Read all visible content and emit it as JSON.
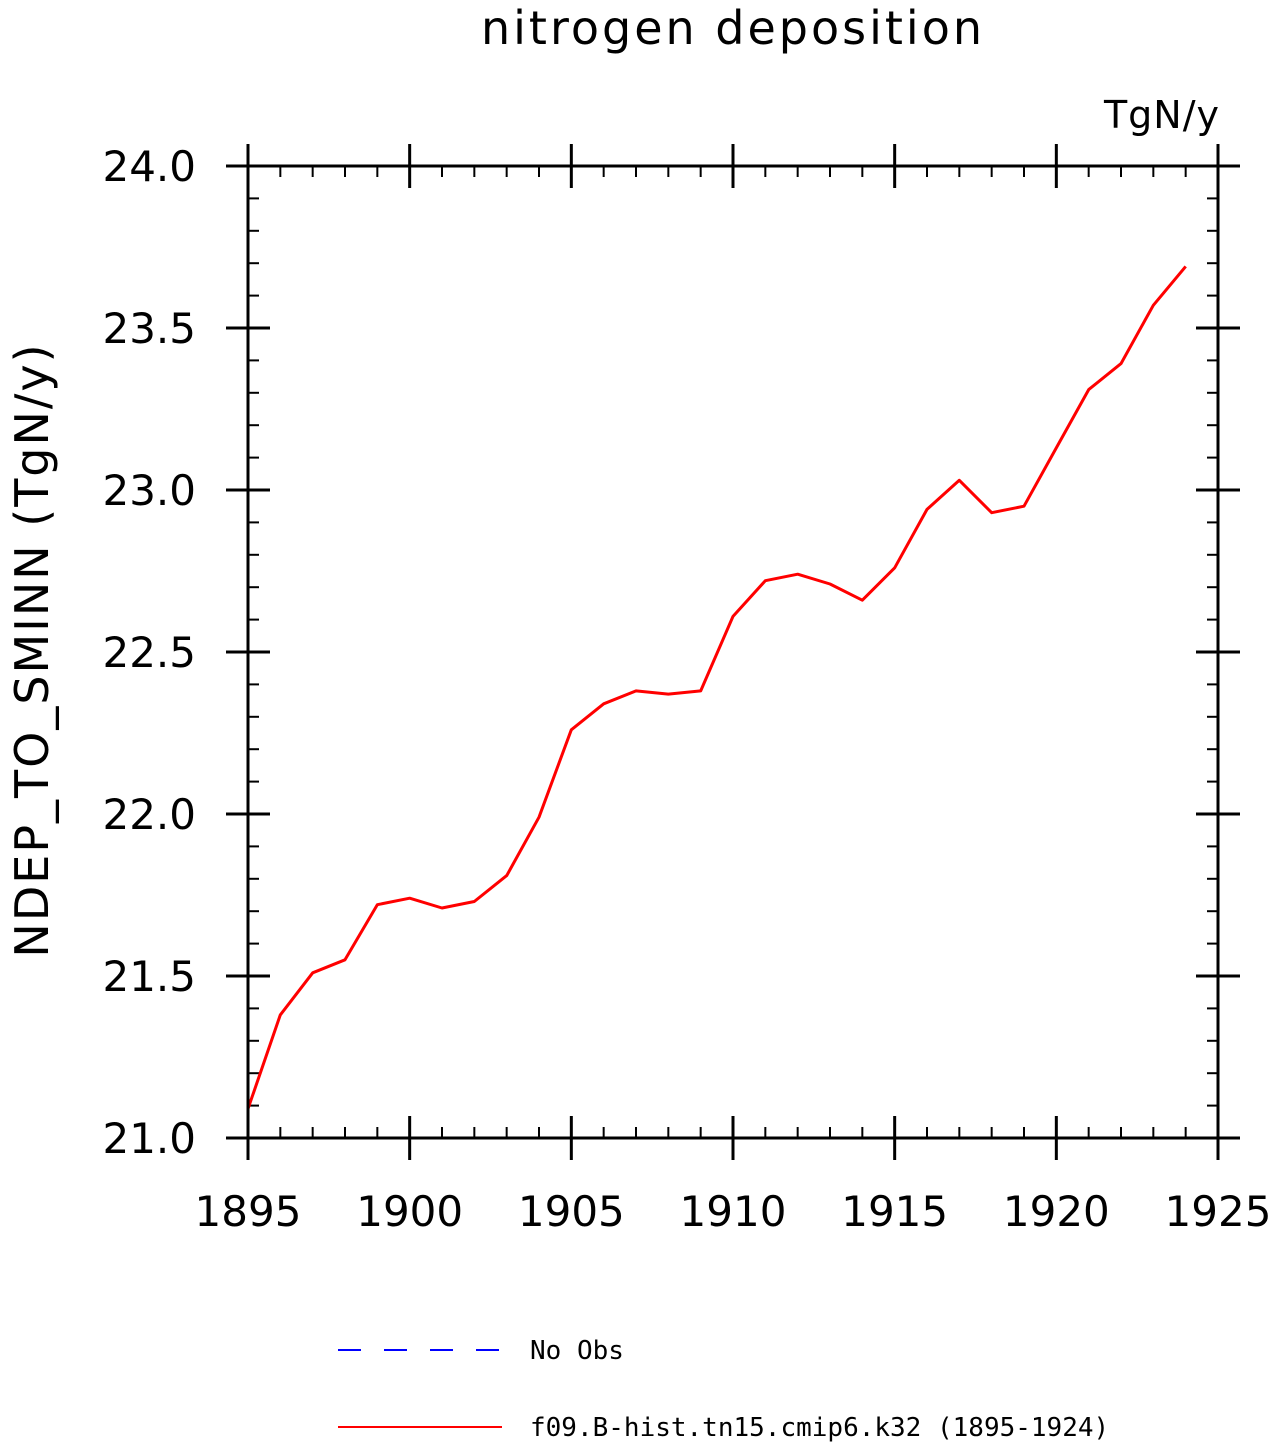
{
  "chart_data": {
    "type": "line",
    "title": "nitrogen deposition",
    "units_label": "TgN/y",
    "ylabel": "NDEP_TO_SMINN   (TgN/y)",
    "xlabel": "",
    "xlim": [
      1895,
      1925
    ],
    "ylim": [
      21.0,
      24.0
    ],
    "x_ticks": [
      1895,
      1900,
      1905,
      1910,
      1915,
      1920,
      1925
    ],
    "y_ticks": [
      "21.0",
      "21.5",
      "22.0",
      "22.5",
      "23.0",
      "23.5",
      "24.0"
    ],
    "x_minor_step": 1,
    "y_minor_step": 0.1,
    "grid": false,
    "legend_placement": "bottom",
    "series": [
      {
        "name": "No Obs",
        "color": "#0000ff",
        "style": "dashed",
        "x": [],
        "values": []
      },
      {
        "name": "f09.B-hist.tn15.cmip6.k32 (1895-1924)",
        "color": "#ff0000",
        "style": "solid",
        "x": [
          1895,
          1896,
          1897,
          1898,
          1899,
          1900,
          1901,
          1902,
          1903,
          1904,
          1905,
          1906,
          1907,
          1908,
          1909,
          1910,
          1911,
          1912,
          1913,
          1914,
          1915,
          1916,
          1917,
          1918,
          1919,
          1920,
          1921,
          1922,
          1923,
          1924
        ],
        "values": [
          21.09,
          21.38,
          21.51,
          21.55,
          21.72,
          21.74,
          21.71,
          21.73,
          21.81,
          21.99,
          22.26,
          22.34,
          22.38,
          22.37,
          22.38,
          22.61,
          22.72,
          22.74,
          22.71,
          22.66,
          22.76,
          22.94,
          23.03,
          22.93,
          22.95,
          23.13,
          23.31,
          23.39,
          23.57,
          23.69
        ]
      }
    ]
  }
}
